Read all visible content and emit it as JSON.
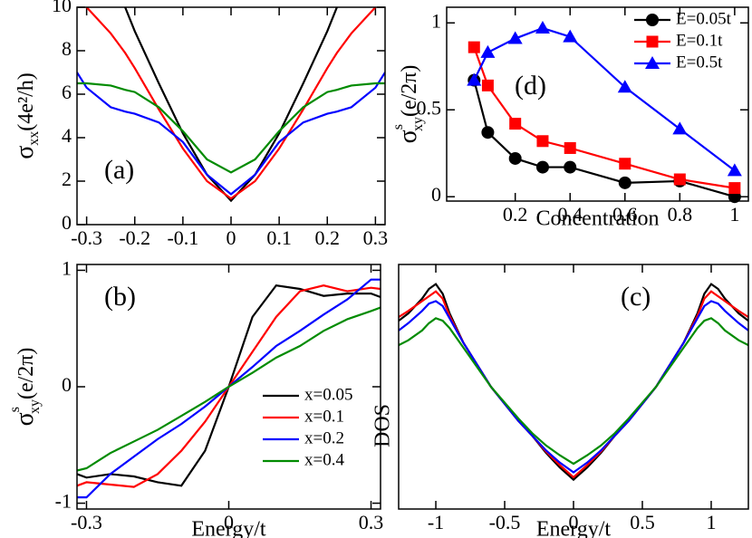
{
  "chart_data": [
    {
      "type": "line",
      "panel_label": "(a)",
      "ylabel": {
        "symbol": "σ",
        "sub": "xx",
        "unit": "(4e²/h)"
      },
      "x": [
        -0.32,
        -0.3,
        -0.25,
        -0.22,
        -0.2,
        -0.15,
        -0.1,
        -0.05,
        0,
        0.05,
        0.1,
        0.15,
        0.2,
        0.22,
        0.25,
        0.3,
        0.32
      ],
      "series": [
        {
          "name": "x=0.05",
          "color": "#000000",
          "values": [
            null,
            null,
            null,
            10,
            8.9,
            6.5,
            4.2,
            2.3,
            1.1,
            2.3,
            4.2,
            6.5,
            8.9,
            10,
            null,
            null,
            null
          ]
        },
        {
          "name": "x=0.1",
          "color": "#ff0000",
          "values": [
            null,
            10,
            8.8,
            7.9,
            7.2,
            5.3,
            3.5,
            2.0,
            1.2,
            2.0,
            3.5,
            5.3,
            7.2,
            7.9,
            8.8,
            10,
            null
          ]
        },
        {
          "name": "x=0.2",
          "color": "#0000ff",
          "values": [
            7.0,
            6.3,
            5.4,
            5.2,
            5.1,
            4.7,
            3.8,
            2.3,
            1.4,
            2.3,
            3.8,
            4.7,
            5.1,
            5.2,
            5.4,
            6.3,
            7.0
          ]
        },
        {
          "name": "x=0.4",
          "color": "#008b00",
          "values": [
            6.5,
            6.5,
            6.4,
            6.2,
            6.1,
            5.4,
            4.3,
            3.0,
            2.4,
            3.0,
            4.3,
            5.4,
            6.1,
            6.2,
            6.4,
            6.5,
            6.5
          ]
        }
      ],
      "xlim": [
        -0.32,
        0.32
      ],
      "xticks": [
        -0.3,
        -0.2,
        -0.1,
        0,
        0.1,
        0.2,
        0.3
      ],
      "ylim": [
        0,
        10
      ],
      "yticks": [
        0,
        2,
        4,
        6,
        8,
        10
      ]
    },
    {
      "type": "line",
      "panel_label": "(b)",
      "xlabel": "Energy/t",
      "ylabel": {
        "symbol": "σ",
        "sup": "s",
        "sub": "xy",
        "unit": "(e/2π)"
      },
      "x": [
        -0.32,
        -0.3,
        -0.25,
        -0.2,
        -0.15,
        -0.1,
        -0.05,
        0,
        0.05,
        0.1,
        0.15,
        0.2,
        0.25,
        0.3,
        0.32
      ],
      "series": [
        {
          "name": "x=0.05",
          "color": "#000000",
          "values": [
            -0.75,
            -0.78,
            -0.75,
            -0.77,
            -0.82,
            -0.85,
            -0.55,
            0,
            0.6,
            0.87,
            0.84,
            0.78,
            0.8,
            0.8,
            0.77
          ]
        },
        {
          "name": "x=0.1",
          "color": "#ff0000",
          "values": [
            -0.85,
            -0.82,
            -0.84,
            -0.86,
            -0.75,
            -0.55,
            -0.3,
            0,
            0.3,
            0.6,
            0.82,
            0.87,
            0.82,
            0.85,
            0.84
          ]
        },
        {
          "name": "x=0.2",
          "color": "#0000ff",
          "values": [
            -0.95,
            -0.95,
            -0.75,
            -0.6,
            -0.45,
            -0.32,
            -0.17,
            0,
            0.17,
            0.35,
            0.48,
            0.62,
            0.75,
            0.92,
            0.92
          ]
        },
        {
          "name": "x=0.4",
          "color": "#008b00",
          "values": [
            -0.72,
            -0.7,
            -0.57,
            -0.47,
            -0.37,
            -0.25,
            -0.13,
            0,
            0.12,
            0.25,
            0.35,
            0.48,
            0.58,
            0.65,
            0.68
          ]
        }
      ],
      "xlim": [
        -0.32,
        0.32
      ],
      "xticks": [
        -0.3,
        0,
        0.3
      ],
      "ylim": [
        -1.05,
        1.05
      ],
      "yticks": [
        -1,
        0,
        1
      ],
      "legend": "lower right"
    },
    {
      "type": "line",
      "panel_label": "(c)",
      "xlabel": "Energy/t",
      "ylabel": "DOS",
      "x": [
        -1.27,
        -1.2,
        -1.1,
        -1.05,
        -1,
        -0.95,
        -0.9,
        -0.8,
        -0.6,
        -0.4,
        -0.3,
        -0.2,
        -0.1,
        0,
        0.1,
        0.2,
        0.3,
        0.4,
        0.6,
        0.8,
        0.9,
        0.95,
        1,
        1.05,
        1.1,
        1.2,
        1.27
      ],
      "series": [
        {
          "color": "#000000",
          "values": [
            0.77,
            0.8,
            0.86,
            0.9,
            0.92,
            0.88,
            0.8,
            0.68,
            0.5,
            0.36,
            0.3,
            0.23,
            0.17,
            0.12,
            0.17,
            0.23,
            0.3,
            0.36,
            0.5,
            0.68,
            0.8,
            0.88,
            0.92,
            0.9,
            0.86,
            0.8,
            0.77
          ]
        },
        {
          "color": "#ff0000",
          "values": [
            0.785,
            0.81,
            0.85,
            0.87,
            0.89,
            0.86,
            0.79,
            0.68,
            0.5,
            0.36,
            0.3,
            0.235,
            0.18,
            0.13,
            0.18,
            0.235,
            0.3,
            0.36,
            0.5,
            0.68,
            0.79,
            0.86,
            0.89,
            0.87,
            0.85,
            0.81,
            0.785
          ]
        },
        {
          "color": "#0000ff",
          "values": [
            0.73,
            0.76,
            0.81,
            0.84,
            0.85,
            0.83,
            0.78,
            0.68,
            0.5,
            0.36,
            0.3,
            0.24,
            0.19,
            0.15,
            0.19,
            0.24,
            0.3,
            0.36,
            0.5,
            0.68,
            0.78,
            0.83,
            0.85,
            0.84,
            0.81,
            0.76,
            0.73
          ]
        },
        {
          "color": "#008b00",
          "values": [
            0.67,
            0.69,
            0.73,
            0.76,
            0.78,
            0.77,
            0.74,
            0.66,
            0.5,
            0.37,
            0.31,
            0.26,
            0.22,
            0.185,
            0.22,
            0.26,
            0.31,
            0.37,
            0.5,
            0.66,
            0.74,
            0.77,
            0.78,
            0.76,
            0.73,
            0.69,
            0.67
          ]
        }
      ],
      "xlim": [
        -1.27,
        1.27
      ],
      "xticks": [
        -1,
        -0.5,
        0,
        0.5,
        1
      ],
      "ylim": [
        0,
        1
      ]
    },
    {
      "type": "line",
      "panel_label": "(d)",
      "xlabel": "Concentration",
      "ylabel": {
        "symbol": "σ",
        "sup": "s",
        "sub": "xy",
        "unit": "(e/2π)"
      },
      "x": [
        0.05,
        0.1,
        0.2,
        0.3,
        0.4,
        0.6,
        0.8,
        1
      ],
      "series": [
        {
          "name": "E=0.05t",
          "color": "#000000",
          "marker": "circle",
          "values": [
            0.67,
            0.37,
            0.22,
            0.17,
            0.17,
            0.08,
            0.09,
            0.0
          ]
        },
        {
          "name": "E=0.1t",
          "color": "#ff0000",
          "marker": "square",
          "values": [
            0.86,
            0.64,
            0.42,
            0.32,
            0.28,
            0.19,
            0.1,
            0.05
          ]
        },
        {
          "name": "E=0.5t",
          "color": "#0000ff",
          "marker": "triangle",
          "values": [
            0.67,
            0.83,
            0.91,
            0.97,
            0.92,
            0.63,
            0.39,
            0.15
          ]
        }
      ],
      "xlim": [
        -0.05,
        1.05
      ],
      "xticks": [
        0.2,
        0.4,
        0.6,
        0.8,
        1
      ],
      "ylim": [
        -0.025,
        1.09
      ],
      "yticks": [
        0,
        0.5,
        1
      ],
      "legend": "upper right"
    }
  ]
}
